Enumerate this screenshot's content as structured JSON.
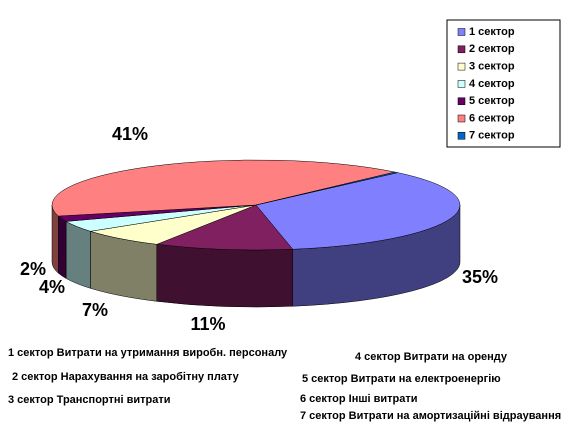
{
  "chart_data": {
    "type": "pie3d",
    "categories": [
      "1 сектор",
      "2 сектор",
      "3 сектор",
      "4 сектор",
      "5 сектор",
      "6 сектор",
      "7 сектор"
    ],
    "values": [
      35,
      11,
      7,
      4,
      2,
      41,
      0.3
    ],
    "value_labels": [
      "35%",
      "11%",
      "7%",
      "4%",
      "2%",
      "41%",
      null
    ],
    "colors": [
      "#8080ff",
      "#802060",
      "#ffffcc",
      "#ccffff",
      "#660066",
      "#ff8080",
      "#0066cc"
    ],
    "legend": "top-right"
  },
  "notes": [
    "1 сектор Витрати на утримання виробн. персоналу",
    "2 сектор Нарахування на заробітну плату",
    "3 сектор Транспортні витрати",
    "4 сектор Витрати на оренду",
    "5 сектор Витрати на електроенергію",
    "6 сектор Інші витрати",
    "7 сектор Витрати на амортизаційні відраування"
  ]
}
